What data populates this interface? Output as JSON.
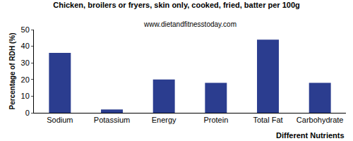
{
  "chart_data": {
    "type": "bar",
    "title": "Chicken, broilers or fryers, skin only, cooked, fried, batter per 100g",
    "subtitle": "www.dietandfitnesstoday.com",
    "x_label": "Different Nutrients",
    "y_label": "Percentage of RDH (%)",
    "categories": [
      "Sodium",
      "Potassium",
      "Energy",
      "Protein",
      "Total Fat",
      "Carbohydrate"
    ],
    "values": [
      36,
      2,
      20,
      18,
      44,
      18
    ],
    "color": "#2b3d8f",
    "ylim": [
      0,
      50
    ],
    "yticks": [
      0,
      10,
      20,
      30,
      40,
      50
    ],
    "grid": false
  }
}
